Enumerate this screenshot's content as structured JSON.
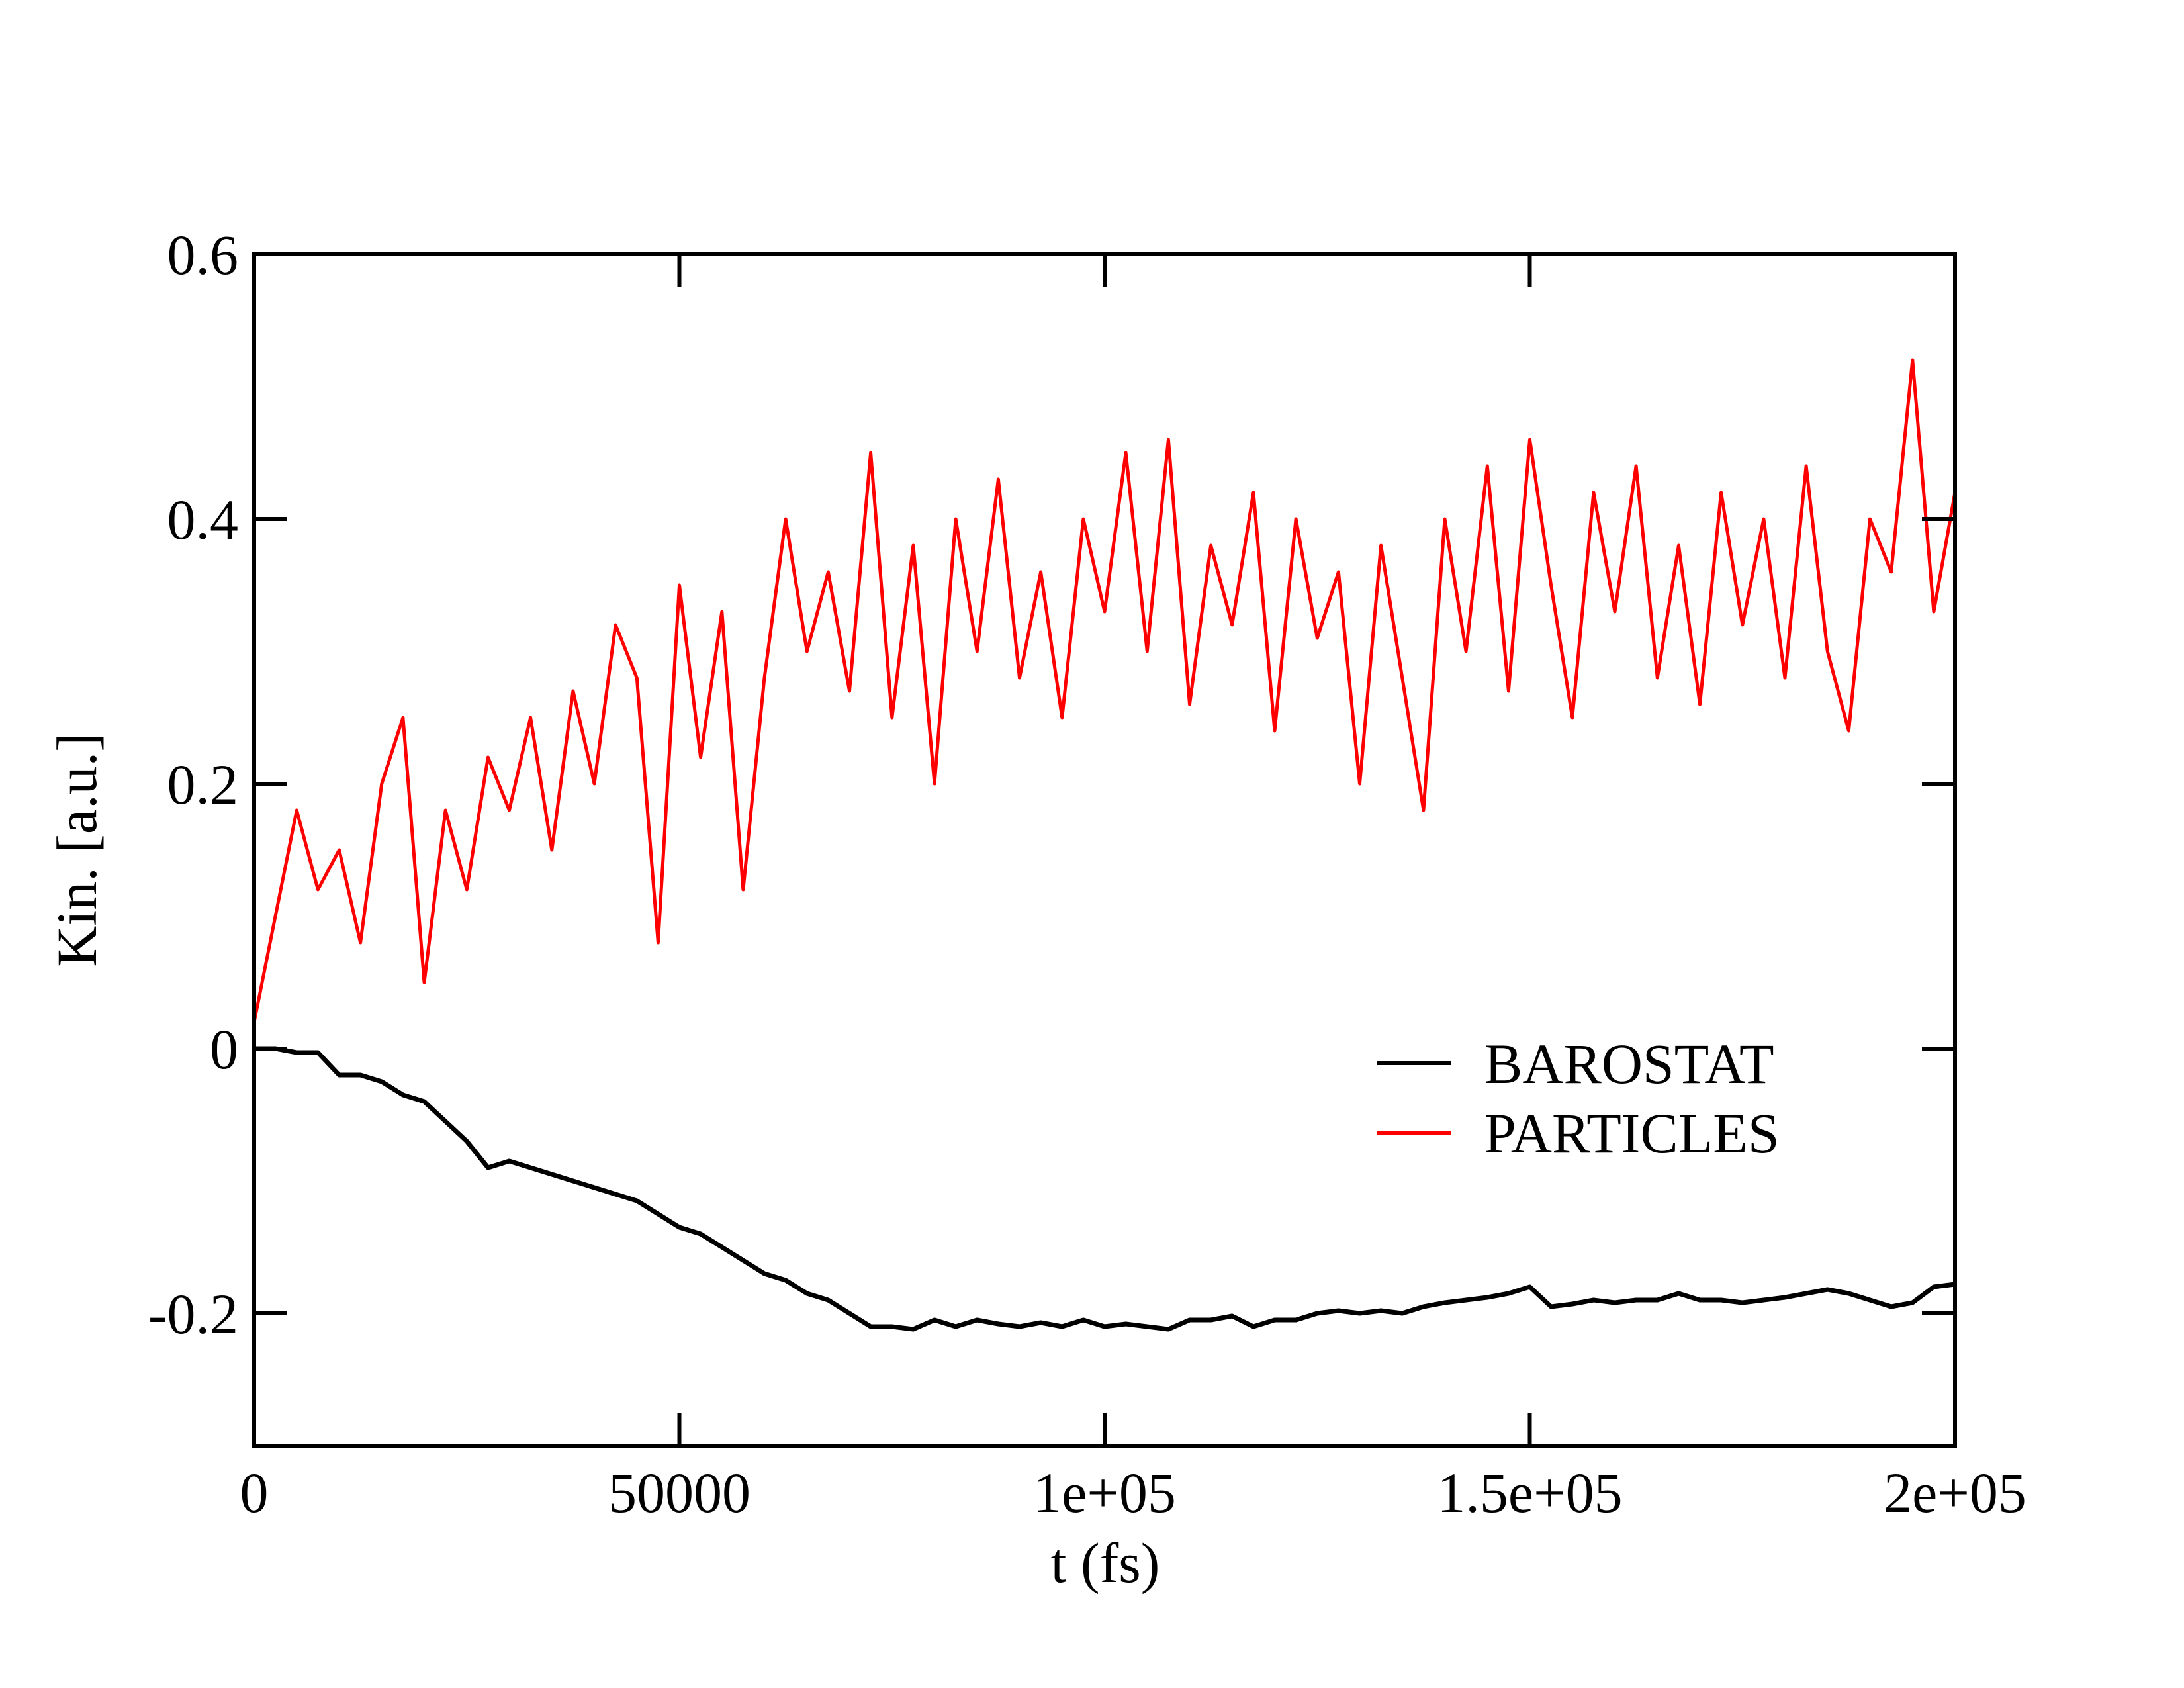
{
  "chart_data": {
    "type": "line",
    "xlabel": "t (fs)",
    "ylabel": "Kin. [a.u.]",
    "x": [
      0,
      2500,
      5000,
      7500,
      10000,
      12500,
      15000,
      17500,
      20000,
      22500,
      25000,
      27500,
      30000,
      32500,
      35000,
      37500,
      40000,
      42500,
      45000,
      47500,
      50000,
      52500,
      55000,
      57500,
      60000,
      62500,
      65000,
      67500,
      70000,
      72500,
      75000,
      77500,
      80000,
      82500,
      85000,
      87500,
      90000,
      92500,
      95000,
      97500,
      100000,
      102500,
      105000,
      107500,
      110000,
      112500,
      115000,
      117500,
      120000,
      122500,
      125000,
      127500,
      130000,
      132500,
      135000,
      137500,
      140000,
      142500,
      145000,
      147500,
      150000,
      152500,
      155000,
      157500,
      160000,
      162500,
      165000,
      167500,
      170000,
      172500,
      175000,
      177500,
      180000,
      182500,
      185000,
      187500,
      190000,
      192500,
      195000,
      197500,
      200000
    ],
    "series": [
      {
        "name": "BAROSTAT",
        "color": "#000000",
        "values": [
          0,
          0,
          -0.003,
          -0.003,
          -0.02,
          -0.02,
          -0.025,
          -0.035,
          -0.04,
          -0.055,
          -0.07,
          -0.09,
          -0.085,
          -0.09,
          -0.095,
          -0.1,
          -0.105,
          -0.11,
          -0.115,
          -0.125,
          -0.135,
          -0.14,
          -0.15,
          -0.16,
          -0.17,
          -0.175,
          -0.185,
          -0.19,
          -0.2,
          -0.21,
          -0.21,
          -0.212,
          -0.205,
          -0.21,
          -0.205,
          -0.208,
          -0.21,
          -0.207,
          -0.21,
          -0.205,
          -0.21,
          -0.208,
          -0.21,
          -0.212,
          -0.205,
          -0.205,
          -0.202,
          -0.21,
          -0.205,
          -0.205,
          -0.2,
          -0.198,
          -0.2,
          -0.198,
          -0.2,
          -0.195,
          -0.192,
          -0.19,
          -0.188,
          -0.185,
          -0.18,
          -0.195,
          -0.193,
          -0.19,
          -0.192,
          -0.19,
          -0.19,
          -0.185,
          -0.19,
          -0.19,
          -0.192,
          -0.19,
          -0.188,
          -0.185,
          -0.182,
          -0.185,
          -0.19,
          -0.195,
          -0.192,
          -0.18,
          -0.178
        ]
      },
      {
        "name": "PARTICLES",
        "color": "#ff0000",
        "values": [
          0.02,
          0.1,
          0.18,
          0.12,
          0.15,
          0.08,
          0.2,
          0.25,
          0.05,
          0.18,
          0.12,
          0.22,
          0.18,
          0.25,
          0.15,
          0.27,
          0.2,
          0.32,
          0.28,
          0.08,
          0.35,
          0.22,
          0.33,
          0.12,
          0.28,
          0.4,
          0.3,
          0.36,
          0.27,
          0.45,
          0.25,
          0.38,
          0.2,
          0.4,
          0.3,
          0.43,
          0.28,
          0.36,
          0.25,
          0.4,
          0.33,
          0.45,
          0.3,
          0.46,
          0.26,
          0.38,
          0.32,
          0.42,
          0.24,
          0.4,
          0.31,
          0.36,
          0.2,
          0.38,
          0.28,
          0.18,
          0.4,
          0.3,
          0.44,
          0.27,
          0.46,
          0.35,
          0.25,
          0.42,
          0.33,
          0.44,
          0.28,
          0.38,
          0.26,
          0.42,
          0.32,
          0.4,
          0.28,
          0.44,
          0.3,
          0.24,
          0.4,
          0.36,
          0.52,
          0.33,
          0.42
        ]
      }
    ],
    "xlim": [
      0,
      200000
    ],
    "xticks": [
      0,
      50000,
      {
        "value": 100000,
        "label": "1e+05"
      },
      {
        "value": 150000,
        "label": "1.5e+05"
      },
      {
        "value": 200000,
        "label": "2e+05"
      }
    ],
    "ylim": [
      -0.3,
      0.6
    ],
    "yticks": [
      -0.2,
      0,
      0.2,
      0.4,
      0.6
    ],
    "legend": "right"
  }
}
